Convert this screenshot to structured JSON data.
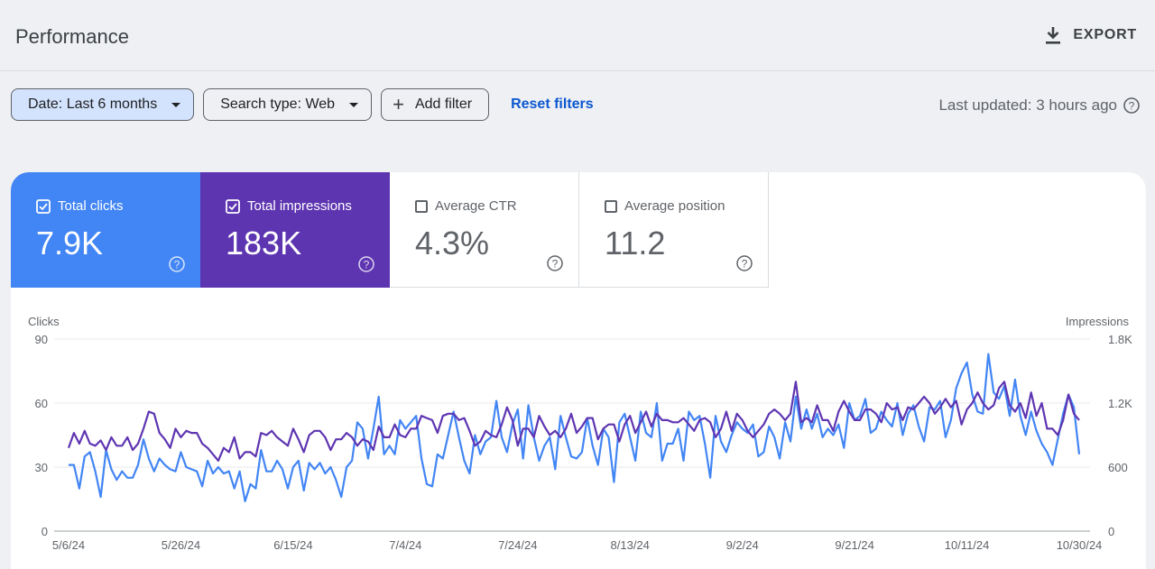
{
  "header": {
    "title": "Performance",
    "export_label": "EXPORT"
  },
  "filters": {
    "date": "Date: Last 6 months",
    "search_type": "Search type: Web",
    "add_filter": "Add filter",
    "reset": "Reset filters",
    "last_updated": "Last updated: 3 hours ago"
  },
  "metrics": {
    "clicks": {
      "label": "Total clicks",
      "value": "7.9K",
      "checked": true,
      "color": "#4285f4"
    },
    "impressions": {
      "label": "Total impressions",
      "value": "183K",
      "checked": true,
      "color": "#5e35b1"
    },
    "ctr": {
      "label": "Average CTR",
      "value": "4.3%",
      "checked": false
    },
    "position": {
      "label": "Average position",
      "value": "11.2",
      "checked": false
    }
  },
  "chart_data": {
    "type": "line",
    "ylabel": "Clicks",
    "y2label": "Impressions",
    "ylim": [
      0,
      90
    ],
    "y2lim": [
      0,
      1800
    ],
    "yticks": [
      "0",
      "30",
      "60",
      "90"
    ],
    "y2ticks": [
      "0",
      "600",
      "1.2K",
      "1.8K"
    ],
    "grid": true,
    "series": [
      {
        "key": "clicks",
        "color": "#4285f4",
        "values": [
          31,
          31,
          20,
          35,
          37,
          28,
          16,
          38,
          29,
          24,
          28,
          25,
          25,
          31,
          43,
          34,
          28,
          34,
          31,
          29,
          28,
          37,
          30,
          29,
          28,
          21,
          33,
          27,
          30,
          27,
          28,
          20,
          28,
          14,
          22,
          20,
          38,
          28,
          28,
          33,
          29,
          20,
          30,
          33,
          19,
          32,
          29,
          32,
          27,
          30,
          24,
          16,
          30,
          33,
          51,
          48,
          34,
          48,
          63,
          36,
          40,
          36,
          52,
          48,
          51,
          54,
          34,
          22,
          21,
          36,
          34,
          45,
          56,
          44,
          33,
          27,
          45,
          36,
          42,
          44,
          61,
          44,
          37,
          50,
          57,
          34,
          59,
          44,
          33,
          40,
          44,
          29,
          54,
          44,
          35,
          34,
          37,
          53,
          40,
          31,
          48,
          44,
          23,
          51,
          55,
          44,
          33,
          56,
          46,
          44,
          60,
          33,
          41,
          41,
          48,
          33,
          56,
          52,
          54,
          41,
          25,
          54,
          42,
          37,
          45,
          51,
          48,
          46,
          50,
          35,
          37,
          49,
          44,
          34,
          51,
          42,
          63,
          48,
          57,
          48,
          55,
          44,
          48,
          45,
          50,
          39,
          60,
          52,
          54,
          62,
          46,
          48,
          56,
          52,
          49,
          60,
          45,
          55,
          59,
          49,
          42,
          58,
          57,
          61,
          44,
          52,
          67,
          74,
          79,
          64,
          56,
          55,
          83,
          65,
          62,
          68,
          54,
          71,
          54,
          45,
          56,
          47,
          41,
          37,
          31,
          43,
          55,
          64,
          58,
          36
        ]
      },
      {
        "key": "impressions",
        "color": "#5e35b1",
        "values": [
          780,
          920,
          820,
          940,
          820,
          800,
          850,
          760,
          880,
          800,
          800,
          880,
          760,
          820,
          960,
          1120,
          1100,
          920,
          860,
          780,
          960,
          880,
          940,
          920,
          920,
          820,
          780,
          720,
          660,
          780,
          740,
          880,
          680,
          740,
          740,
          700,
          920,
          900,
          940,
          880,
          840,
          800,
          960,
          860,
          740,
          900,
          940,
          940,
          880,
          760,
          860,
          860,
          920,
          880,
          800,
          860,
          840,
          760,
          980,
          880,
          880,
          1000,
          900,
          880,
          960,
          960,
          1080,
          1060,
          1040,
          920,
          1080,
          1100,
          1100,
          1040,
          1060,
          940,
          800,
          840,
          940,
          900,
          880,
          1000,
          1160,
          1040,
          800,
          960,
          960,
          880,
          1080,
          980,
          900,
          940,
          880,
          960,
          1100,
          920,
          980,
          1060,
          1060,
          860,
          960,
          1000,
          1000,
          840,
          1000,
          1080,
          920,
          1020,
          1120,
          980,
          1100,
          1040,
          1040,
          1020,
          1020,
          1060,
          1000,
          940,
          1040,
          1060,
          1020,
          880,
          960,
          1120,
          940,
          1100,
          1040,
          940,
          880,
          940,
          1000,
          1100,
          1140,
          1100,
          1040,
          1100,
          1400,
          1020,
          1060,
          1020,
          1180,
          1040,
          1040,
          940,
          1120,
          1220,
          1120,
          1040,
          1040,
          1140,
          1140,
          1100,
          1020,
          1200,
          1140,
          1160,
          1040,
          1160,
          1140,
          1200,
          1260,
          1200,
          1100,
          1160,
          1240,
          1160,
          1220,
          1000,
          1140,
          1200,
          1300,
          1200,
          1140,
          1180,
          1340,
          1400,
          1180,
          1120,
          1200,
          1060,
          1300,
          1080,
          1200,
          960,
          960,
          900,
          1040,
          1280,
          1100,
          1040
        ]
      }
    ],
    "x_tick_labels": [
      "5/6/24",
      "5/26/24",
      "6/15/24",
      "7/4/24",
      "7/24/24",
      "8/13/24",
      "9/2/24",
      "9/21/24",
      "10/11/24",
      "10/30/24"
    ]
  }
}
